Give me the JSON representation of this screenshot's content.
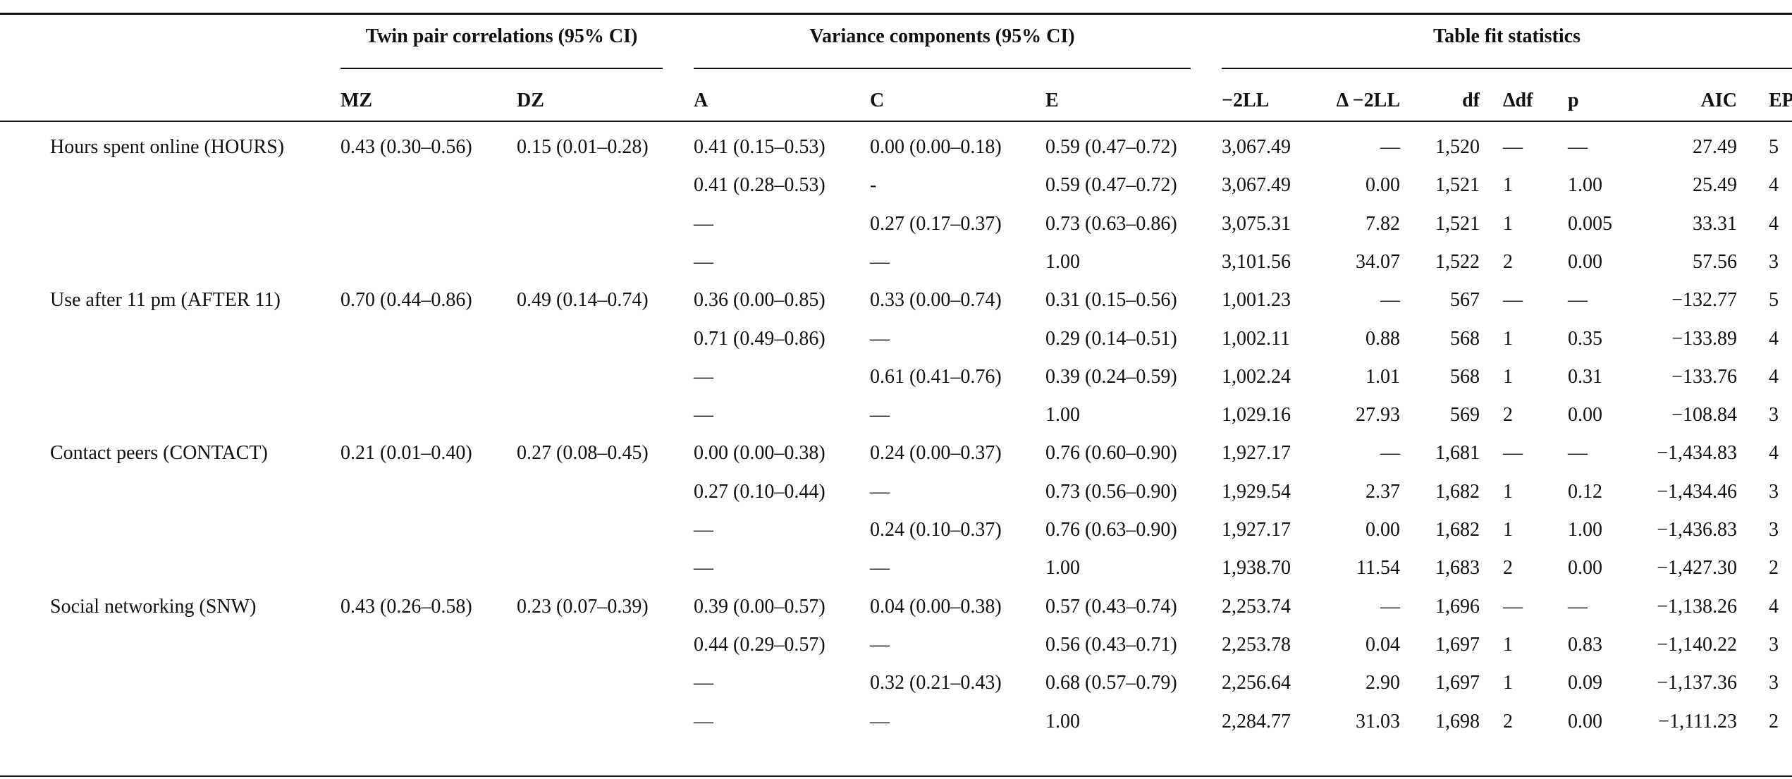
{
  "table": {
    "group_headers": [
      "Twin pair correlations (95% CI)",
      "Variance components (95% CI)",
      "Table fit statistics"
    ],
    "column_headers": [
      "MZ",
      "DZ",
      "A",
      "C",
      "E",
      "−2LL",
      "Δ −2LL",
      "df",
      "Δdf",
      "p",
      "AIC",
      "EP"
    ],
    "groups": [
      {
        "label": "Hours spent online (HOURS)",
        "mz": "0.43 (0.30–0.56)",
        "dz": "0.15 (0.01–0.28)",
        "models": [
          [
            "0.41 (0.15–0.53)",
            "0.00 (0.00–0.18)",
            "0.59 (0.47–0.72)",
            "3,067.49",
            "—",
            "1,520",
            "—",
            "—",
            "27.49",
            "5"
          ],
          [
            "0.41 (0.28–0.53)",
            "-",
            "0.59 (0.47–0.72)",
            "3,067.49",
            "0.00",
            "1,521",
            "1",
            "1.00",
            "25.49",
            "4"
          ],
          [
            "—",
            "0.27 (0.17–0.37)",
            "0.73 (0.63–0.86)",
            "3,075.31",
            "7.82",
            "1,521",
            "1",
            "0.005",
            "33.31",
            "4"
          ],
          [
            "—",
            "—",
            "1.00",
            "3,101.56",
            "34.07",
            "1,522",
            "2",
            "0.00",
            "57.56",
            "3"
          ]
        ]
      },
      {
        "label": "Use after 11 pm (AFTER 11)",
        "mz": "0.70 (0.44–0.86)",
        "dz": "0.49 (0.14–0.74)",
        "models": [
          [
            "0.36 (0.00–0.85)",
            "0.33 (0.00–0.74)",
            "0.31 (0.15–0.56)",
            "1,001.23",
            "—",
            "567",
            "—",
            "—",
            "−132.77",
            "5"
          ],
          [
            "0.71 (0.49–0.86)",
            "—",
            "0.29 (0.14–0.51)",
            "1,002.11",
            "0.88",
            "568",
            "1",
            "0.35",
            "−133.89",
            "4"
          ],
          [
            "—",
            "0.61 (0.41–0.76)",
            "0.39 (0.24–0.59)",
            "1,002.24",
            "1.01",
            "568",
            "1",
            "0.31",
            "−133.76",
            "4"
          ],
          [
            "—",
            "—",
            "1.00",
            "1,029.16",
            "27.93",
            "569",
            "2",
            "0.00",
            "−108.84",
            "3"
          ]
        ]
      },
      {
        "label": "Contact peers (CONTACT)",
        "mz": "0.21 (0.01–0.40)",
        "dz": "0.27 (0.08–0.45)",
        "models": [
          [
            "0.00 (0.00–0.38)",
            "0.24 (0.00–0.37)",
            "0.76 (0.60–0.90)",
            "1,927.17",
            "—",
            "1,681",
            "—",
            "—",
            "−1,434.83",
            "4"
          ],
          [
            "0.27 (0.10–0.44)",
            "—",
            "0.73 (0.56–0.90)",
            "1,929.54",
            "2.37",
            "1,682",
            "1",
            "0.12",
            "−1,434.46",
            "3"
          ],
          [
            "—",
            "0.24 (0.10–0.37)",
            "0.76 (0.63–0.90)",
            "1,927.17",
            "0.00",
            "1,682",
            "1",
            "1.00",
            "−1,436.83",
            "3"
          ],
          [
            "—",
            "—",
            "1.00",
            "1,938.70",
            "11.54",
            "1,683",
            "2",
            "0.00",
            "−1,427.30",
            "2"
          ]
        ]
      },
      {
        "label": "Social networking (SNW)",
        "mz": "0.43 (0.26–0.58)",
        "dz": "0.23 (0.07–0.39)",
        "models": [
          [
            "0.39 (0.00–0.57)",
            "0.04 (0.00–0.38)",
            "0.57 (0.43–0.74)",
            "2,253.74",
            "—",
            "1,696",
            "—",
            "—",
            "−1,138.26",
            "4"
          ],
          [
            "0.44 (0.29–0.57)",
            "—",
            "0.56 (0.43–0.71)",
            "2,253.78",
            "0.04",
            "1,697",
            "1",
            "0.83",
            "−1,140.22",
            "3"
          ],
          [
            "—",
            "0.32 (0.21–0.43)",
            "0.68 (0.57–0.79)",
            "2,256.64",
            "2.90",
            "1,697",
            "1",
            "0.09",
            "−1,137.36",
            "3"
          ],
          [
            "—",
            "—",
            "1.00",
            "2,284.77",
            "31.03",
            "1,698",
            "2",
            "0.00",
            "−1,111.23",
            "2"
          ]
        ]
      }
    ]
  }
}
